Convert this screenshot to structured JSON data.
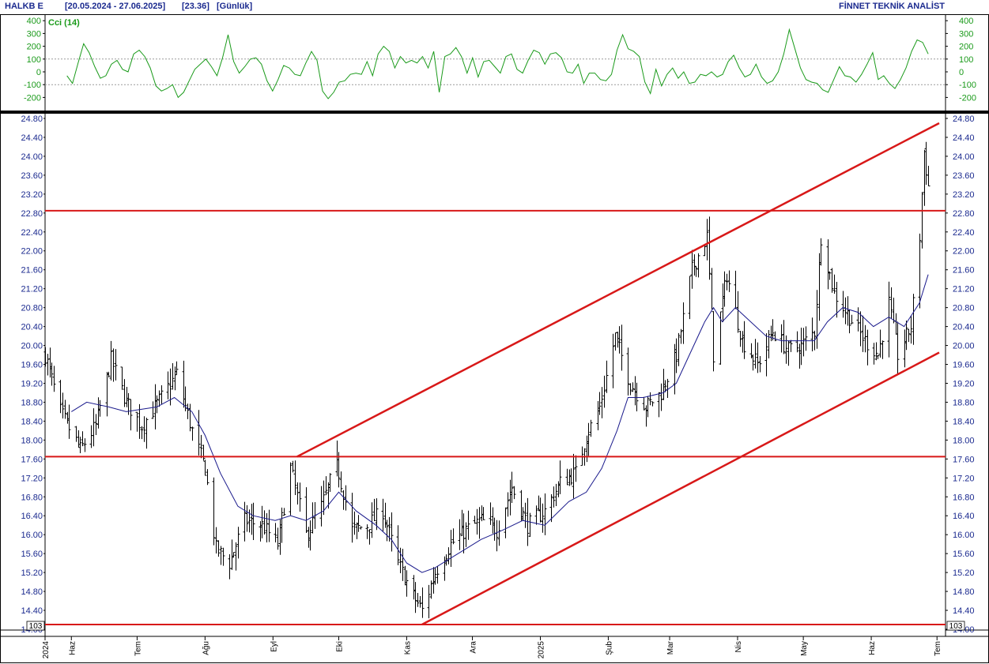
{
  "header": {
    "symbol": "HALKB E",
    "range": "[20.05.2024 - 27.06.2025]",
    "last": "[23.36]",
    "period": "[Günlük]",
    "provider": "FİNNET TEKNİK ANALİST"
  },
  "colors": {
    "price_bars": "#000000",
    "moving_average": "#1a1a8c",
    "channel_lines": "#d81818",
    "horizontal_levels": "#d81818",
    "cci_line": "#1a9a1a",
    "axis_text": "#1b2a8f",
    "cci_axis_text": "#1a9a1a"
  },
  "cci_panel": {
    "label": "Cci (14)",
    "ticks": [
      "400",
      "300",
      "200",
      "100",
      "0",
      "-100",
      "-200"
    ],
    "tick_values": [
      400,
      300,
      200,
      100,
      0,
      -100,
      -200
    ],
    "reference_lines": [
      100,
      -100
    ],
    "ylim": [
      -300,
      400
    ],
    "values": [
      -30,
      -90,
      70,
      220,
      150,
      40,
      -50,
      -30,
      60,
      90,
      20,
      0,
      140,
      170,
      120,
      30,
      -110,
      -150,
      -130,
      -100,
      -200,
      -160,
      -70,
      20,
      60,
      100,
      40,
      -30,
      110,
      290,
      80,
      -10,
      40,
      100,
      110,
      60,
      -70,
      -150,
      -60,
      50,
      30,
      -20,
      -30,
      70,
      160,
      90,
      -150,
      -210,
      -160,
      -80,
      -70,
      -20,
      -10,
      -20,
      80,
      -30,
      140,
      200,
      160,
      30,
      120,
      70,
      90,
      70,
      120,
      30,
      160,
      -160,
      120,
      140,
      190,
      120,
      -10,
      110,
      -40,
      80,
      90,
      40,
      -10,
      120,
      140,
      20,
      -10,
      90,
      170,
      150,
      60,
      140,
      150,
      110,
      0,
      -10,
      60,
      -90,
      -10,
      -10,
      -60,
      -70,
      -20,
      170,
      290,
      180,
      160,
      120,
      -80,
      -170,
      20,
      -110,
      -20,
      30,
      -50,
      0,
      -90,
      -80,
      -20,
      -30,
      0,
      -40,
      -20,
      80,
      130,
      30,
      -40,
      -20,
      60,
      -40,
      -90,
      -70,
      0,
      140,
      330,
      180,
      30,
      -60,
      -80,
      -90,
      -140,
      -160,
      -60,
      40,
      -30,
      -40,
      -80,
      -20,
      60,
      150,
      -60,
      -30,
      -90,
      -130,
      -60,
      30,
      160,
      250,
      230,
      140
    ],
    "show_grid": false
  },
  "chart_data": {
    "type": "ohlc",
    "title": "HALKB E [20.05.2024 - 27.06.2025] [23.36] [Günlük]",
    "xlabel": "",
    "ylabel": "",
    "ylim": [
      14.07,
      24.89
    ],
    "y_ticks": [
      "24.80",
      "24.40",
      "24.00",
      "23.60",
      "23.20",
      "22.80",
      "22.40",
      "22.00",
      "21.60",
      "21.20",
      "20.80",
      "20.40",
      "20.00",
      "19.60",
      "19.20",
      "18.80",
      "18.40",
      "18.00",
      "17.60",
      "17.20",
      "16.80",
      "16.40",
      "16.00",
      "15.60",
      "15.20",
      "14.80",
      "14.40",
      "14.00"
    ],
    "y_tick_values": [
      24.8,
      24.4,
      24.0,
      23.6,
      23.2,
      22.8,
      22.4,
      22.0,
      21.6,
      21.2,
      20.8,
      20.4,
      20.0,
      19.6,
      19.2,
      18.8,
      18.4,
      18.0,
      17.6,
      17.2,
      16.8,
      16.4,
      16.0,
      15.6,
      15.2,
      14.8,
      14.4,
      14.0
    ],
    "x_ticks": [
      "2024",
      "Haz",
      "Tem",
      "Ağu",
      "Eyl",
      "Eki",
      "Kas",
      "Ara",
      "2025",
      "Şub",
      "Mar",
      "Nis",
      "May",
      "Haz",
      "Tem"
    ],
    "x_tick_dates": [
      "2024-05-20",
      "2024-06-01",
      "2024-07-01",
      "2024-08-01",
      "2024-09-01",
      "2024-10-01",
      "2024-11-01",
      "2024-12-01",
      "2025-01-01",
      "2025-02-01",
      "2025-03-01",
      "2025-04-01",
      "2025-05-01",
      "2025-06-01",
      "2025-07-01"
    ],
    "scale_label": "10^3",
    "grid": false,
    "close_anchors": [
      {
        "date": "2024-05-20",
        "close": 19.8
      },
      {
        "date": "2024-05-27",
        "close": 18.6
      },
      {
        "date": "2024-06-05",
        "close": 17.8
      },
      {
        "date": "2024-06-12",
        "close": 18.3
      },
      {
        "date": "2024-06-19",
        "close": 19.7
      },
      {
        "date": "2024-06-26",
        "close": 18.8
      },
      {
        "date": "2024-07-03",
        "close": 18.3
      },
      {
        "date": "2024-07-12",
        "close": 18.9
      },
      {
        "date": "2024-07-19",
        "close": 19.4
      },
      {
        "date": "2024-07-26",
        "close": 18.2
      },
      {
        "date": "2024-08-01",
        "close": 17.4
      },
      {
        "date": "2024-08-06",
        "close": 15.7
      },
      {
        "date": "2024-08-12",
        "close": 15.4
      },
      {
        "date": "2024-08-19",
        "close": 16.3
      },
      {
        "date": "2024-08-27",
        "close": 16.2
      },
      {
        "date": "2024-09-03",
        "close": 15.8
      },
      {
        "date": "2024-09-09",
        "close": 17.4
      },
      {
        "date": "2024-09-16",
        "close": 16.0
      },
      {
        "date": "2024-09-23",
        "close": 16.6
      },
      {
        "date": "2024-09-30",
        "close": 17.5
      },
      {
        "date": "2024-10-07",
        "close": 16.1
      },
      {
        "date": "2024-10-14",
        "close": 16.2
      },
      {
        "date": "2024-10-21",
        "close": 16.5
      },
      {
        "date": "2024-10-28",
        "close": 15.4
      },
      {
        "date": "2024-11-04",
        "close": 14.7
      },
      {
        "date": "2024-11-08",
        "close": 14.4
      },
      {
        "date": "2024-11-14",
        "close": 15.2
      },
      {
        "date": "2024-11-21",
        "close": 15.8
      },
      {
        "date": "2024-11-28",
        "close": 16.1
      },
      {
        "date": "2024-12-05",
        "close": 16.3
      },
      {
        "date": "2024-12-12",
        "close": 16.1
      },
      {
        "date": "2024-12-19",
        "close": 17.0
      },
      {
        "date": "2024-12-26",
        "close": 16.2
      },
      {
        "date": "2025-01-03",
        "close": 16.5
      },
      {
        "date": "2025-01-10",
        "close": 17.1
      },
      {
        "date": "2025-01-17",
        "close": 17.3
      },
      {
        "date": "2025-01-22",
        "close": 18.1
      },
      {
        "date": "2025-01-28",
        "close": 18.7
      },
      {
        "date": "2025-02-04",
        "close": 20.2
      },
      {
        "date": "2025-02-11",
        "close": 19.2
      },
      {
        "date": "2025-02-18",
        "close": 18.7
      },
      {
        "date": "2025-02-25",
        "close": 19.0
      },
      {
        "date": "2025-03-04",
        "close": 19.8
      },
      {
        "date": "2025-03-11",
        "close": 21.6
      },
      {
        "date": "2025-03-18",
        "close": 22.3
      },
      {
        "date": "2025-03-21",
        "close": 19.8
      },
      {
        "date": "2025-03-27",
        "close": 21.5
      },
      {
        "date": "2025-04-03",
        "close": 20.1
      },
      {
        "date": "2025-04-10",
        "close": 19.6
      },
      {
        "date": "2025-04-17",
        "close": 20.3
      },
      {
        "date": "2025-04-24",
        "close": 19.9
      },
      {
        "date": "2025-04-30",
        "close": 20.0
      },
      {
        "date": "2025-05-06",
        "close": 20.3
      },
      {
        "date": "2025-05-09",
        "close": 22.3
      },
      {
        "date": "2025-05-15",
        "close": 21.1
      },
      {
        "date": "2025-05-22",
        "close": 20.6
      },
      {
        "date": "2025-05-29",
        "close": 20.1
      },
      {
        "date": "2025-06-04",
        "close": 19.8
      },
      {
        "date": "2025-06-09",
        "close": 20.9
      },
      {
        "date": "2025-06-13",
        "close": 19.8
      },
      {
        "date": "2025-06-19",
        "close": 20.4
      },
      {
        "date": "2025-06-23",
        "close": 22.3
      },
      {
        "date": "2025-06-25",
        "close": 24.1
      },
      {
        "date": "2025-06-27",
        "close": 23.36
      }
    ],
    "moving_average": [
      {
        "date": "2024-06-01",
        "value": 18.6
      },
      {
        "date": "2024-06-08",
        "value": 18.8
      },
      {
        "date": "2024-06-18",
        "value": 18.7
      },
      {
        "date": "2024-06-26",
        "value": 18.6
      },
      {
        "date": "2024-07-10",
        "value": 18.7
      },
      {
        "date": "2024-07-18",
        "value": 18.9
      },
      {
        "date": "2024-07-26",
        "value": 18.6
      },
      {
        "date": "2024-08-01",
        "value": 18.1
      },
      {
        "date": "2024-08-08",
        "value": 17.3
      },
      {
        "date": "2024-08-16",
        "value": 16.6
      },
      {
        "date": "2024-08-23",
        "value": 16.4
      },
      {
        "date": "2024-09-02",
        "value": 16.3
      },
      {
        "date": "2024-09-09",
        "value": 16.4
      },
      {
        "date": "2024-09-16",
        "value": 16.3
      },
      {
        "date": "2024-09-24",
        "value": 16.5
      },
      {
        "date": "2024-10-01",
        "value": 16.9
      },
      {
        "date": "2024-10-09",
        "value": 16.5
      },
      {
        "date": "2024-10-18",
        "value": 16.2
      },
      {
        "date": "2024-10-25",
        "value": 15.9
      },
      {
        "date": "2024-11-01",
        "value": 15.4
      },
      {
        "date": "2024-11-08",
        "value": 15.2
      },
      {
        "date": "2024-11-14",
        "value": 15.3
      },
      {
        "date": "2024-11-21",
        "value": 15.5
      },
      {
        "date": "2024-11-28",
        "value": 15.7
      },
      {
        "date": "2024-12-05",
        "value": 15.9
      },
      {
        "date": "2024-12-15",
        "value": 16.1
      },
      {
        "date": "2024-12-24",
        "value": 16.3
      },
      {
        "date": "2025-01-03",
        "value": 16.2
      },
      {
        "date": "2025-01-14",
        "value": 16.7
      },
      {
        "date": "2025-01-22",
        "value": 16.9
      },
      {
        "date": "2025-01-29",
        "value": 17.4
      },
      {
        "date": "2025-02-05",
        "value": 18.2
      },
      {
        "date": "2025-02-10",
        "value": 18.9
      },
      {
        "date": "2025-02-17",
        "value": 18.9
      },
      {
        "date": "2025-02-26",
        "value": 19.0
      },
      {
        "date": "2025-03-04",
        "value": 19.2
      },
      {
        "date": "2025-03-11",
        "value": 19.9
      },
      {
        "date": "2025-03-17",
        "value": 20.5
      },
      {
        "date": "2025-03-21",
        "value": 20.8
      },
      {
        "date": "2025-03-25",
        "value": 20.5
      },
      {
        "date": "2025-03-31",
        "value": 20.8
      },
      {
        "date": "2025-04-07",
        "value": 20.5
      },
      {
        "date": "2025-04-14",
        "value": 20.2
      },
      {
        "date": "2025-04-21",
        "value": 20.1
      },
      {
        "date": "2025-04-28",
        "value": 20.1
      },
      {
        "date": "2025-05-06",
        "value": 20.1
      },
      {
        "date": "2025-05-12",
        "value": 20.5
      },
      {
        "date": "2025-05-19",
        "value": 20.8
      },
      {
        "date": "2025-05-26",
        "value": 20.7
      },
      {
        "date": "2025-06-02",
        "value": 20.4
      },
      {
        "date": "2025-06-09",
        "value": 20.6
      },
      {
        "date": "2025-06-16",
        "value": 20.4
      },
      {
        "date": "2025-06-23",
        "value": 20.9
      },
      {
        "date": "2025-06-27",
        "value": 21.5
      }
    ],
    "horizontal_levels": [
      22.85,
      17.65,
      14.1
    ],
    "channel_upper": [
      {
        "date": "2024-09-12",
        "value": 17.65
      },
      {
        "date": "2025-07-02",
        "value": 24.7
      }
    ],
    "channel_lower": [
      {
        "date": "2024-11-08",
        "value": 14.1
      },
      {
        "date": "2025-07-02",
        "value": 19.85
      }
    ]
  }
}
